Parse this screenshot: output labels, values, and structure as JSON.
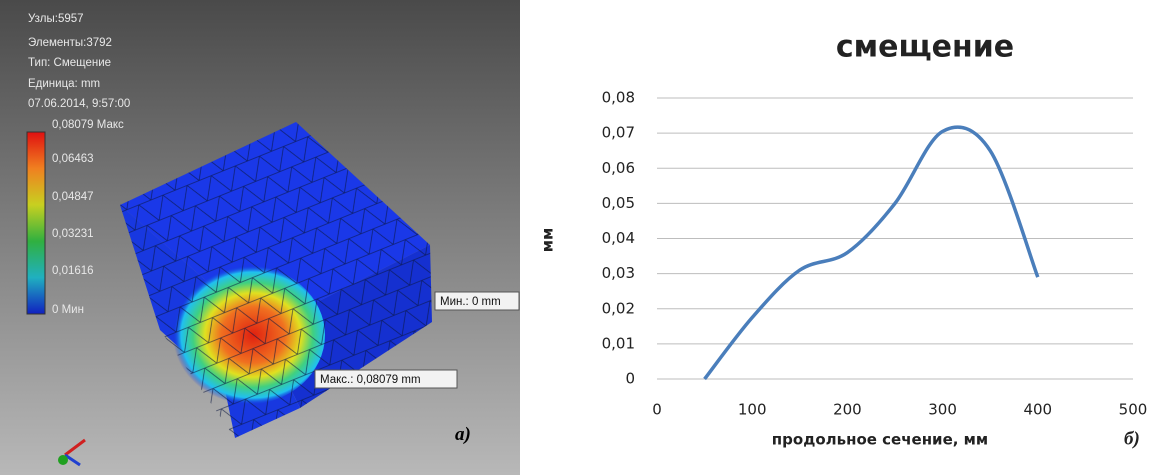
{
  "fea_panel": {
    "info": [
      "Узлы:5957",
      "Элементы:3792",
      "Тип: Смещение",
      "Единица: mm",
      "07.06.2014, 9:57:00"
    ],
    "scale_labels": [
      "0,08079 Макс",
      "0,06463",
      "0,04847",
      "0,03231",
      "0,01616",
      "0 Мин"
    ],
    "min_callout": "Мин.: 0 mm",
    "max_callout": "Макс.: 0,08079 mm",
    "panel_label": "а)"
  },
  "chart_data": {
    "type": "line",
    "title": "смещение",
    "x_label": "продольное сечение, мм",
    "y_label": "мм",
    "panel_label": "б)",
    "x": [
      50,
      100,
      150,
      200,
      250,
      300,
      350,
      400
    ],
    "series": [
      {
        "name": "смещение",
        "color": "#4a7ebb",
        "values": [
          0,
          0.0175,
          0.031,
          0.036,
          0.05,
          0.0705,
          0.065,
          0.029
        ]
      }
    ],
    "xlim": [
      0,
      500
    ],
    "xticks": [
      0,
      100,
      200,
      300,
      400,
      500
    ],
    "ylim": [
      0,
      0.08
    ],
    "yticks": [
      0,
      {
        "value": 0.01,
        "label": "0,01"
      },
      {
        "value": 0.02,
        "label": "0,02"
      },
      {
        "value": 0.03,
        "label": "0,03"
      },
      {
        "value": 0.04,
        "label": "0,04"
      },
      {
        "value": 0.05,
        "label": "0,05"
      },
      {
        "value": 0.06,
        "label": "0,06"
      },
      {
        "value": 0.07,
        "label": "0,07"
      },
      {
        "value": 0.08,
        "label": "0,08"
      }
    ],
    "grid": true
  }
}
